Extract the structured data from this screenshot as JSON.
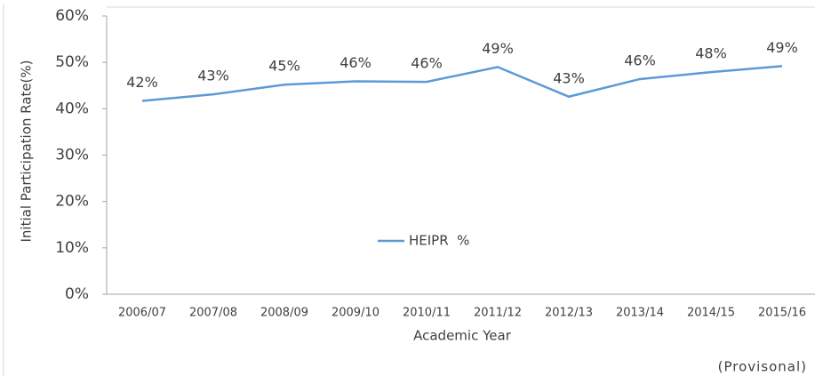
{
  "chart_data": {
    "type": "line",
    "y_axis_label": "Initial Participation Rate(%)",
    "x_axis_label": "Academic Year",
    "annotation": "(Provisonal)",
    "categories": [
      "2006/07",
      "2007/08",
      "2008/09",
      "2009/10",
      "2010/11",
      "2011/12",
      "2012/13",
      "2013/14",
      "2014/15",
      "2015/16"
    ],
    "series": [
      {
        "name": "HEIPR  %",
        "color": "#5b9bd5",
        "values": [
          41.7,
          43.1,
          45.2,
          45.9,
          45.8,
          49.0,
          42.6,
          46.4,
          47.9,
          49.2
        ],
        "value_labels": [
          "42%",
          "43%",
          "45%",
          "46%",
          "46%",
          "49%",
          "43%",
          "46%",
          "48%",
          "49%"
        ]
      }
    ],
    "ylim": [
      0,
      60
    ],
    "yticks": [
      {
        "value": 0,
        "label": "0%"
      },
      {
        "value": 10,
        "label": "10%"
      },
      {
        "value": 20,
        "label": "20%"
      },
      {
        "value": 30,
        "label": "30%"
      },
      {
        "value": 40,
        "label": "40%"
      },
      {
        "value": 50,
        "label": "50%"
      },
      {
        "value": 60,
        "label": "60%"
      }
    ],
    "legend": "center"
  }
}
